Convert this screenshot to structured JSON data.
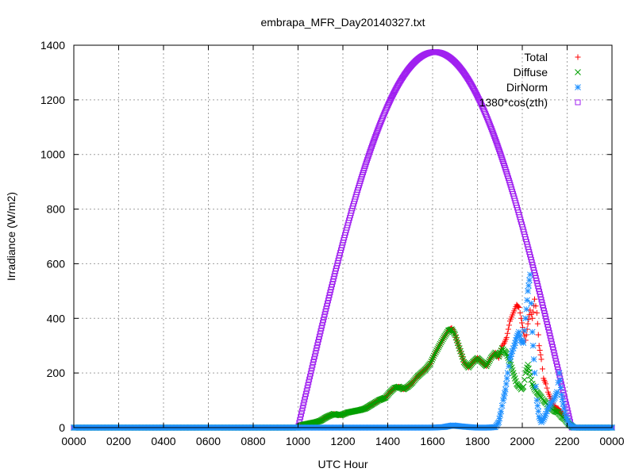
{
  "chart_data": {
    "type": "scatter",
    "title": "embrapa_MFR_Day20140327.txt",
    "xlabel": "UTC Hour",
    "ylabel": "Irradiance (W/m2)",
    "xlim": [
      0,
      24
    ],
    "ylim": [
      0,
      1400
    ],
    "x_ticks": [
      {
        "value": 0,
        "label": "0000"
      },
      {
        "value": 2,
        "label": "0200"
      },
      {
        "value": 4,
        "label": "0400"
      },
      {
        "value": 6,
        "label": "0600"
      },
      {
        "value": 8,
        "label": "0800"
      },
      {
        "value": 10,
        "label": "1000"
      },
      {
        "value": 12,
        "label": "1200"
      },
      {
        "value": 14,
        "label": "1400"
      },
      {
        "value": 16,
        "label": "1600"
      },
      {
        "value": 18,
        "label": "1800"
      },
      {
        "value": 20,
        "label": "2000"
      },
      {
        "value": 22,
        "label": "2200"
      },
      {
        "value": 24,
        "label": "0000"
      }
    ],
    "y_ticks": [
      {
        "value": 0,
        "label": "0"
      },
      {
        "value": 200,
        "label": "200"
      },
      {
        "value": 400,
        "label": "400"
      },
      {
        "value": 600,
        "label": "600"
      },
      {
        "value": 800,
        "label": "800"
      },
      {
        "value": 1000,
        "label": "1000"
      },
      {
        "value": 1200,
        "label": "1200"
      },
      {
        "value": 1400,
        "label": "1400"
      }
    ],
    "grid": true,
    "legend_position": "top-right",
    "series": [
      {
        "name": "Total",
        "color": "#ff0000",
        "marker": "plus",
        "points": [
          [
            0,
            0
          ],
          [
            2,
            0
          ],
          [
            4,
            0
          ],
          [
            6,
            0
          ],
          [
            8,
            0
          ],
          [
            10,
            0
          ],
          [
            10.2,
            10
          ],
          [
            10.5,
            15
          ],
          [
            10.8,
            20
          ],
          [
            11,
            25
          ],
          [
            11.3,
            40
          ],
          [
            11.6,
            50
          ],
          [
            11.9,
            45
          ],
          [
            12.2,
            55
          ],
          [
            12.5,
            60
          ],
          [
            12.8,
            65
          ],
          [
            13,
            70
          ],
          [
            13.3,
            85
          ],
          [
            13.6,
            100
          ],
          [
            13.9,
            110
          ],
          [
            14.1,
            130
          ],
          [
            14.3,
            145
          ],
          [
            14.5,
            150
          ],
          [
            14.7,
            140
          ],
          [
            14.9,
            150
          ],
          [
            15.1,
            165
          ],
          [
            15.3,
            185
          ],
          [
            15.5,
            200
          ],
          [
            15.7,
            215
          ],
          [
            15.9,
            235
          ],
          [
            16.1,
            270
          ],
          [
            16.3,
            300
          ],
          [
            16.5,
            330
          ],
          [
            16.7,
            355
          ],
          [
            16.85,
            365
          ],
          [
            17,
            340
          ],
          [
            17.2,
            290
          ],
          [
            17.4,
            240
          ],
          [
            17.6,
            220
          ],
          [
            17.8,
            240
          ],
          [
            18,
            255
          ],
          [
            18.2,
            240
          ],
          [
            18.4,
            225
          ],
          [
            18.6,
            255
          ],
          [
            18.8,
            275
          ],
          [
            18.95,
            255
          ],
          [
            19.1,
            300
          ],
          [
            19.2,
            310
          ],
          [
            19.3,
            330
          ],
          [
            19.45,
            390
          ],
          [
            19.6,
            420
          ],
          [
            19.75,
            450
          ],
          [
            19.85,
            440
          ],
          [
            19.95,
            400
          ],
          [
            20.05,
            350
          ],
          [
            20.15,
            320
          ],
          [
            20.25,
            380
          ],
          [
            20.35,
            430
          ],
          [
            20.45,
            400
          ],
          [
            20.55,
            470
          ],
          [
            20.65,
            420
          ],
          [
            20.75,
            300
          ],
          [
            20.85,
            250
          ],
          [
            20.95,
            180
          ],
          [
            21.05,
            160
          ],
          [
            21.15,
            130
          ],
          [
            21.3,
            100
          ],
          [
            21.45,
            75
          ],
          [
            21.6,
            70
          ],
          [
            21.75,
            55
          ],
          [
            21.9,
            40
          ],
          [
            22.05,
            20
          ],
          [
            22.2,
            5
          ],
          [
            22.3,
            0
          ],
          [
            23,
            0
          ],
          [
            24,
            0
          ]
        ]
      },
      {
        "name": "Diffuse",
        "color": "#00a000",
        "marker": "x",
        "points": [
          [
            0,
            0
          ],
          [
            2,
            0
          ],
          [
            4,
            0
          ],
          [
            6,
            0
          ],
          [
            8,
            0
          ],
          [
            10,
            0
          ],
          [
            10.2,
            10
          ],
          [
            10.5,
            15
          ],
          [
            10.8,
            20
          ],
          [
            11,
            25
          ],
          [
            11.3,
            40
          ],
          [
            11.6,
            50
          ],
          [
            11.9,
            45
          ],
          [
            12.2,
            55
          ],
          [
            12.5,
            60
          ],
          [
            12.8,
            65
          ],
          [
            13,
            70
          ],
          [
            13.3,
            85
          ],
          [
            13.6,
            100
          ],
          [
            13.9,
            110
          ],
          [
            14.1,
            130
          ],
          [
            14.3,
            145
          ],
          [
            14.5,
            150
          ],
          [
            14.7,
            140
          ],
          [
            14.9,
            150
          ],
          [
            15.1,
            165
          ],
          [
            15.3,
            185
          ],
          [
            15.5,
            200
          ],
          [
            15.7,
            215
          ],
          [
            15.9,
            235
          ],
          [
            16.1,
            270
          ],
          [
            16.3,
            300
          ],
          [
            16.5,
            330
          ],
          [
            16.7,
            355
          ],
          [
            16.85,
            360
          ],
          [
            17,
            340
          ],
          [
            17.2,
            290
          ],
          [
            17.4,
            240
          ],
          [
            17.6,
            220
          ],
          [
            17.8,
            240
          ],
          [
            18,
            255
          ],
          [
            18.2,
            240
          ],
          [
            18.4,
            225
          ],
          [
            18.6,
            255
          ],
          [
            18.8,
            275
          ],
          [
            18.95,
            260
          ],
          [
            19.1,
            290
          ],
          [
            19.2,
            280
          ],
          [
            19.3,
            270
          ],
          [
            19.45,
            240
          ],
          [
            19.6,
            200
          ],
          [
            19.75,
            160
          ],
          [
            19.85,
            150
          ],
          [
            19.95,
            140
          ],
          [
            20.05,
            150
          ],
          [
            20.15,
            200
          ],
          [
            20.25,
            230
          ],
          [
            20.35,
            190
          ],
          [
            20.45,
            160
          ],
          [
            20.55,
            140
          ],
          [
            20.65,
            130
          ],
          [
            20.75,
            120
          ],
          [
            20.85,
            110
          ],
          [
            20.95,
            100
          ],
          [
            21.05,
            90
          ],
          [
            21.15,
            80
          ],
          [
            21.3,
            70
          ],
          [
            21.45,
            60
          ],
          [
            21.6,
            55
          ],
          [
            21.75,
            40
          ],
          [
            21.9,
            30
          ],
          [
            22.05,
            15
          ],
          [
            22.2,
            5
          ],
          [
            22.3,
            0
          ],
          [
            23,
            0
          ],
          [
            24,
            0
          ]
        ]
      },
      {
        "name": "DirNorm",
        "color": "#1e90ff",
        "marker": "star",
        "points": [
          [
            0,
            0
          ],
          [
            2,
            0
          ],
          [
            4,
            0
          ],
          [
            6,
            0
          ],
          [
            8,
            0
          ],
          [
            10,
            0
          ],
          [
            11,
            0
          ],
          [
            12,
            0
          ],
          [
            13,
            0
          ],
          [
            14,
            0
          ],
          [
            15,
            0
          ],
          [
            16,
            0
          ],
          [
            16.5,
            2
          ],
          [
            16.9,
            8
          ],
          [
            17.2,
            5
          ],
          [
            17.6,
            2
          ],
          [
            18,
            0
          ],
          [
            18.5,
            0
          ],
          [
            18.8,
            2
          ],
          [
            18.95,
            20
          ],
          [
            19.05,
            60
          ],
          [
            19.15,
            100
          ],
          [
            19.25,
            140
          ],
          [
            19.35,
            200
          ],
          [
            19.45,
            250
          ],
          [
            19.55,
            280
          ],
          [
            19.65,
            300
          ],
          [
            19.75,
            330
          ],
          [
            19.85,
            350
          ],
          [
            19.95,
            320
          ],
          [
            20.05,
            310
          ],
          [
            20.15,
            400
          ],
          [
            20.25,
            500
          ],
          [
            20.35,
            560
          ],
          [
            20.45,
            350
          ],
          [
            20.55,
            200
          ],
          [
            20.65,
            100
          ],
          [
            20.75,
            40
          ],
          [
            20.85,
            20
          ],
          [
            20.95,
            30
          ],
          [
            21.05,
            50
          ],
          [
            21.15,
            70
          ],
          [
            21.3,
            90
          ],
          [
            21.45,
            110
          ],
          [
            21.55,
            130
          ],
          [
            21.65,
            200
          ],
          [
            21.75,
            120
          ],
          [
            21.85,
            70
          ],
          [
            21.95,
            40
          ],
          [
            22.05,
            20
          ],
          [
            22.15,
            10
          ],
          [
            22.3,
            0
          ],
          [
            23,
            0
          ],
          [
            24,
            0
          ]
        ]
      },
      {
        "name": "1380*cos(zth)",
        "color": "#a020f0",
        "marker": "square",
        "curve": {
          "noon": 16.1,
          "half_width": 6.1,
          "peak": 1375
        }
      }
    ]
  }
}
